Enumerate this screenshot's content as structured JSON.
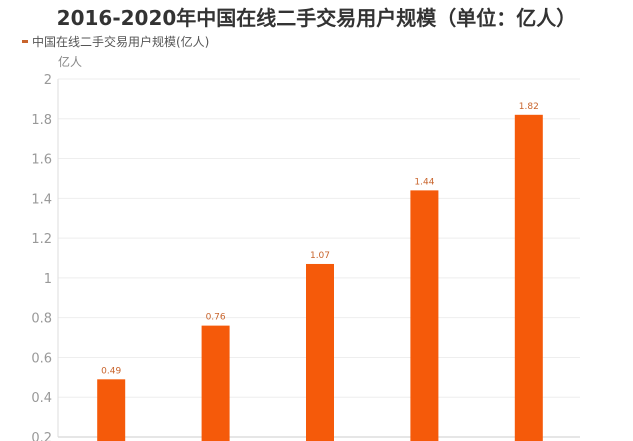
{
  "title": "2016-2020年中国在线二手交易用户规模（单位：亿人）",
  "chart_data": {
    "type": "bar",
    "title": "2016-2020年中国在线二手交易用户规模（单位：亿人）",
    "ylabel": "亿人",
    "ylim": [
      0.2,
      2
    ],
    "yticks": [
      "0.2",
      "0.4",
      "0.6",
      "0.8",
      "1",
      "1.2",
      "1.4",
      "1.6",
      "1.8",
      "2"
    ],
    "grid": true,
    "legend_position": "top-left",
    "series": [
      {
        "name": "中国在线二手交易用户规模(亿人)",
        "values": [
          0.49,
          0.76,
          1.07,
          1.44,
          1.82
        ],
        "labels": [
          "0.49",
          "0.76",
          "1.07",
          "1.44",
          "1.82"
        ],
        "color": "#f55a0a"
      }
    ]
  }
}
